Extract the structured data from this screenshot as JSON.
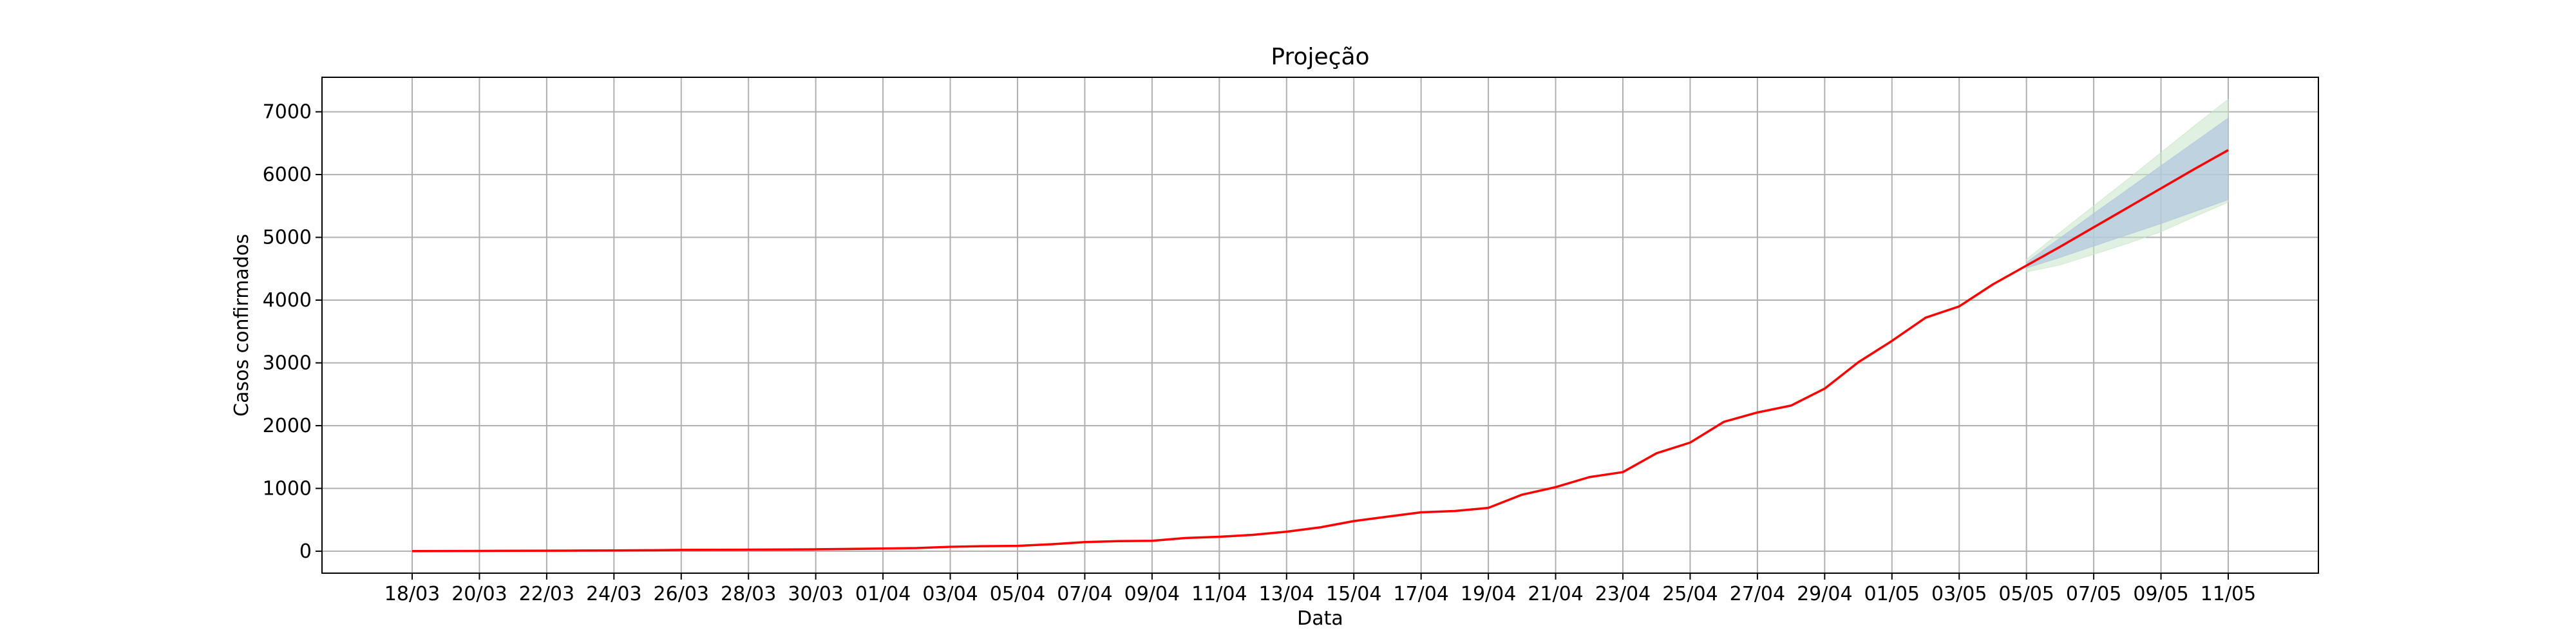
{
  "chart_data": {
    "type": "line",
    "title": "Projeção",
    "xlabel": "Data",
    "ylabel": "Casos confirmados",
    "ylim": [
      -350,
      7550
    ],
    "yticks": [
      0,
      1000,
      2000,
      3000,
      4000,
      5000,
      6000,
      7000
    ],
    "grid": true,
    "x": [
      "18/03",
      "19/03",
      "20/03",
      "21/03",
      "22/03",
      "23/03",
      "24/03",
      "25/03",
      "26/03",
      "27/03",
      "28/03",
      "29/03",
      "30/03",
      "31/03",
      "01/04",
      "02/04",
      "03/04",
      "04/04",
      "05/04",
      "06/04",
      "07/04",
      "08/04",
      "09/04",
      "10/04",
      "11/04",
      "12/04",
      "13/04",
      "14/04",
      "15/04",
      "16/04",
      "17/04",
      "18/04",
      "19/04",
      "20/04",
      "21/04",
      "22/04",
      "23/04",
      "24/04",
      "25/04",
      "26/04",
      "27/04",
      "28/04",
      "29/04",
      "30/04",
      "01/05",
      "02/05",
      "03/05",
      "04/05",
      "05/05",
      "06/05",
      "07/05",
      "08/05",
      "09/05",
      "10/05",
      "11/05"
    ],
    "xticks": [
      "18/03",
      "20/03",
      "22/03",
      "24/03",
      "26/03",
      "28/03",
      "30/03",
      "01/04",
      "03/04",
      "05/04",
      "07/04",
      "09/04",
      "11/04",
      "13/04",
      "15/04",
      "17/04",
      "19/04",
      "21/04",
      "23/04",
      "25/04",
      "27/04",
      "29/04",
      "01/05",
      "03/05",
      "05/05",
      "07/05",
      "09/05",
      "11/05"
    ],
    "series": [
      {
        "color": "#ff0000",
        "values": [
          2,
          3,
          4,
          6,
          8,
          10,
          12,
          15,
          20,
          22,
          24,
          27,
          30,
          36,
          42,
          50,
          70,
          80,
          85,
          110,
          145,
          160,
          165,
          210,
          230,
          260,
          310,
          380,
          480,
          550,
          620,
          640,
          690,
          900,
          1020,
          1180,
          1260,
          1560,
          1730,
          2060,
          2210,
          2320,
          2590,
          3010,
          3350,
          3720,
          3900,
          4250,
          4550,
          4850,
          5160,
          5470,
          5780,
          6090,
          6390
        ]
      }
    ],
    "projection": {
      "start": "05/05",
      "inner_band": {
        "color": "#b0c4de",
        "lower": [
          4510,
          4680,
          4860,
          5040,
          5220,
          5410,
          5600
        ],
        "upper": [
          4600,
          4990,
          5380,
          5760,
          6140,
          6520,
          6900
        ]
      },
      "outer_band": {
        "color": "#c8e6c8",
        "lower": [
          4450,
          4560,
          4730,
          4900,
          5090,
          5330,
          5560
        ],
        "upper": [
          4650,
          5080,
          5500,
          5920,
          6350,
          6780,
          7200
        ]
      }
    }
  }
}
